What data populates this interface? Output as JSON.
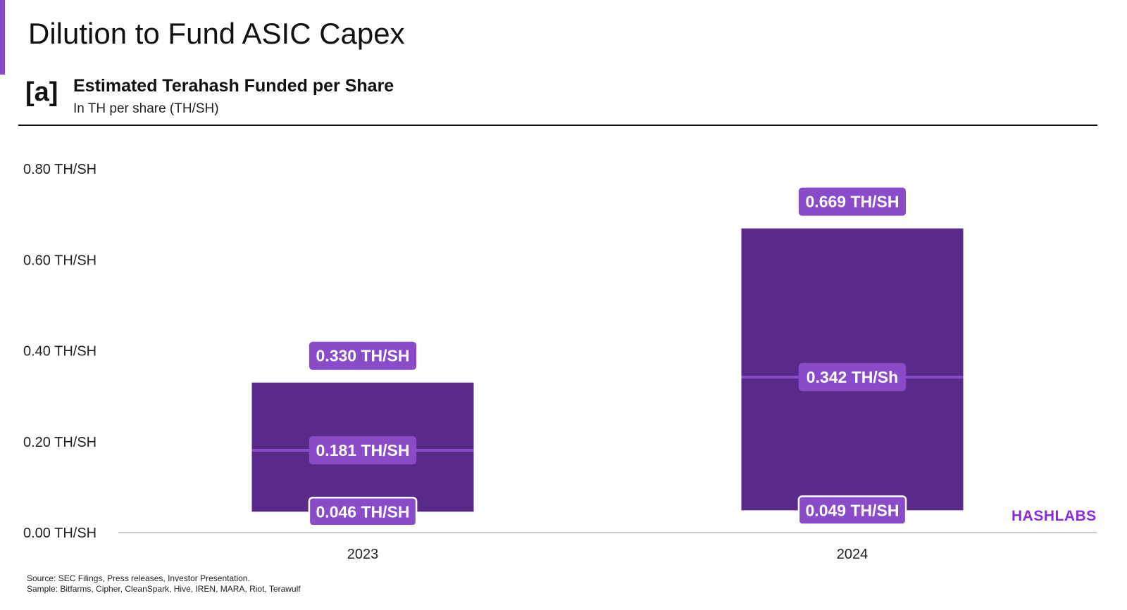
{
  "header": {
    "title": "Dilution to Fund ASIC Capex",
    "panel_tag": "[a]"
  },
  "brand": {
    "logo": "HASHLABS",
    "accent": "#8a4bc8"
  },
  "footer": {
    "source": "Source: SEC Filings, Press releases, Investor Presentation.",
    "sample": "Sample: Bitfarms, Cipher, CleanSpark, Hive, IREN, MARA, Riot, Terawulf"
  },
  "chart_data": {
    "type": "bar",
    "title": "Estimated Terahash Funded per Share",
    "subtitle": "In TH per share (TH/SH)",
    "categories": [
      "2023",
      "2024"
    ],
    "ylim": [
      0,
      0.8
    ],
    "yticks": [
      0,
      0.2,
      0.4,
      0.6,
      0.8
    ],
    "ytick_labels": [
      "0.00 TH/SH",
      "0.20 TH/SH",
      "0.40 TH/SH",
      "0.60 TH/SH",
      "0.80 TH/SH"
    ],
    "grid": false,
    "series": [
      {
        "min": 0.046,
        "median": 0.181,
        "max": 0.33,
        "min_label": "0.046 TH/SH",
        "median_label": "0.181 TH/SH",
        "max_label": "0.330 TH/SH"
      },
      {
        "min": 0.049,
        "median": 0.342,
        "max": 0.669,
        "min_label": "0.049 TH/SH",
        "median_label": "0.342 TH/Sh",
        "max_label": "0.669 TH/SH"
      }
    ],
    "colors": {
      "bar": "#5a2a8a",
      "label": "#8a4bc8",
      "median_line": "#8a4bc8"
    }
  }
}
